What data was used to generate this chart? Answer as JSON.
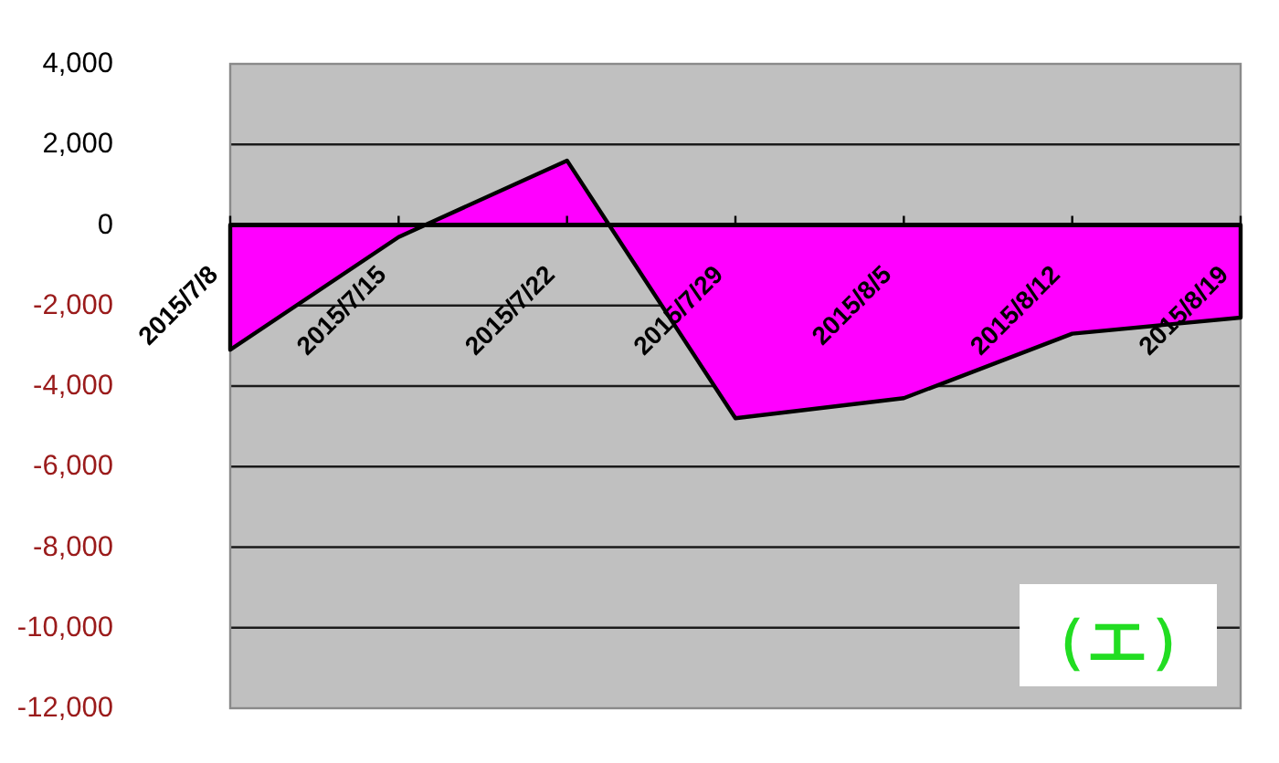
{
  "chart_data": {
    "type": "area",
    "categories": [
      "2015/7/8",
      "2015/7/15",
      "2015/7/22",
      "2015/7/29",
      "2015/8/5",
      "2015/8/12",
      "2015/8/19"
    ],
    "values": [
      -3100,
      -300,
      1600,
      -4800,
      -4300,
      -2700,
      -2300
    ],
    "color": "#ff00ff",
    "ylim": [
      -12000,
      4000
    ],
    "yticks": [
      {
        "value": 4000,
        "label": "4,000"
      },
      {
        "value": 2000,
        "label": "2,000"
      },
      0,
      {
        "value": -2000,
        "label": "-2,000"
      },
      {
        "value": -4000,
        "label": "-4,000"
      },
      {
        "value": -6000,
        "label": "-6,000"
      },
      {
        "value": -8000,
        "label": "-8,000"
      },
      {
        "value": -10000,
        "label": "-10,000"
      },
      {
        "value": -12000,
        "label": "-12,000"
      }
    ],
    "grid": "y",
    "annotations": [
      "（エ）"
    ]
  }
}
